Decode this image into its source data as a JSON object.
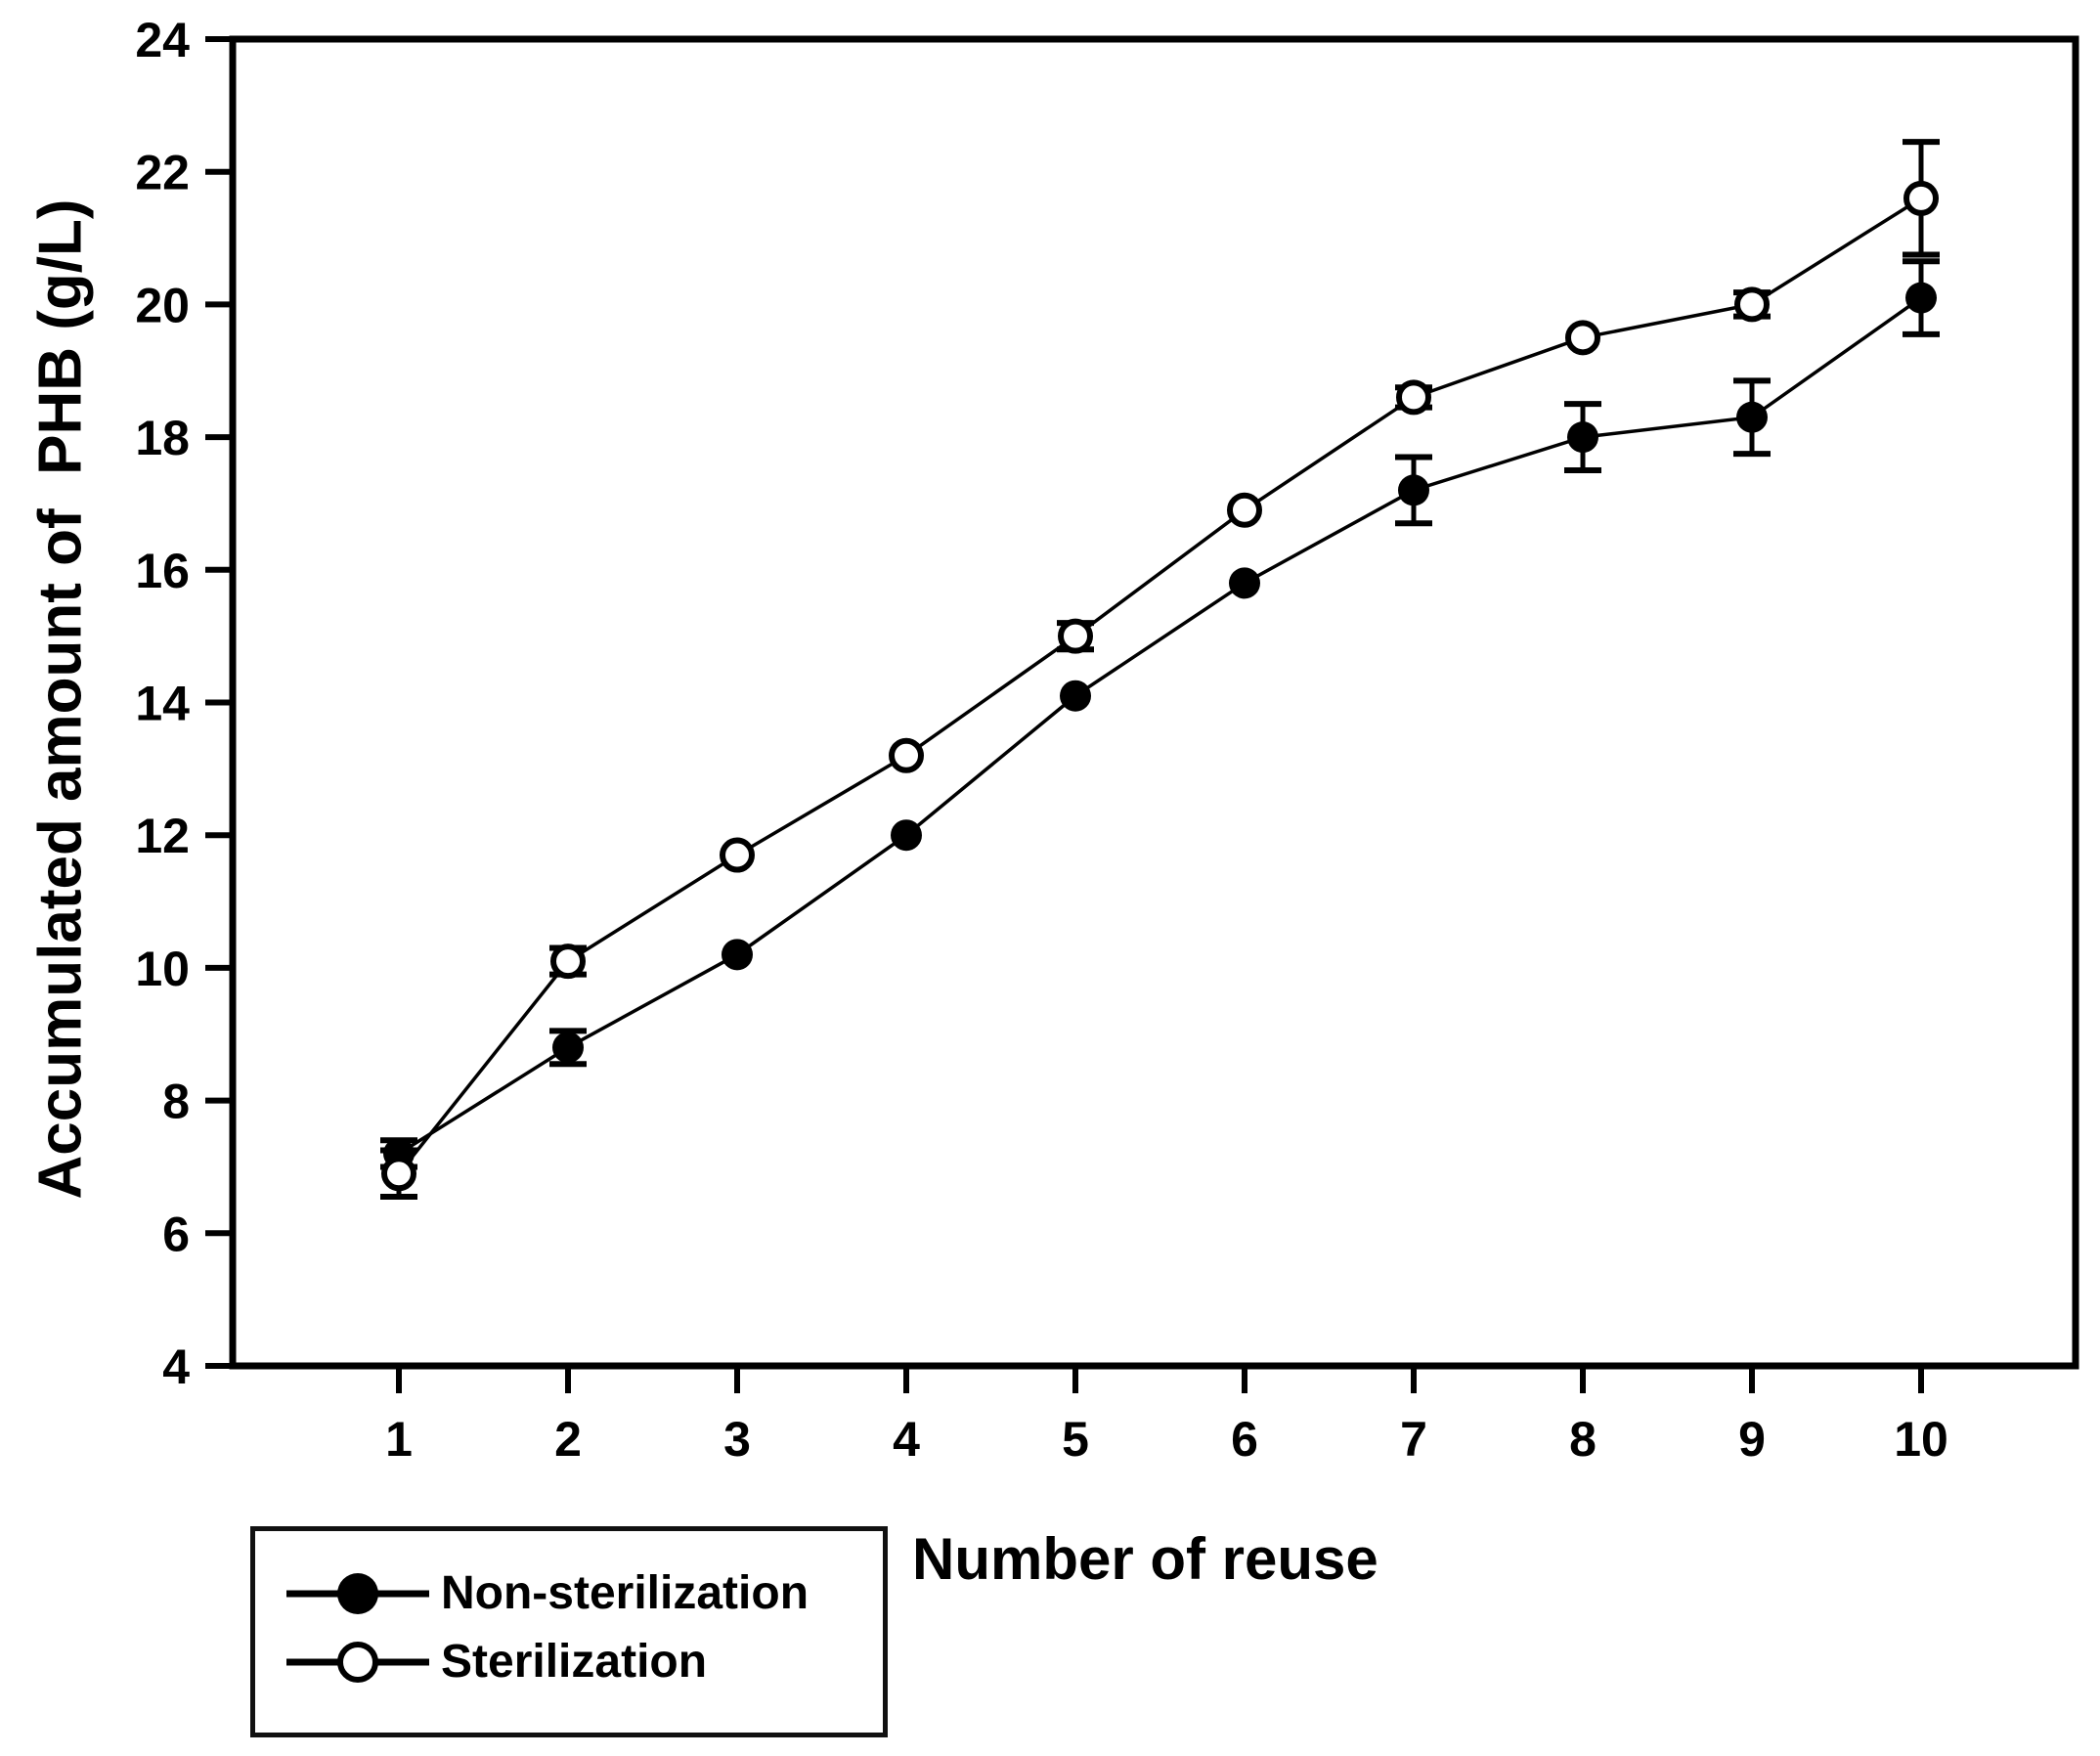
{
  "figure": {
    "background_color": "#ffffff",
    "foreground_color": "#000000"
  },
  "chart_data": {
    "type": "line",
    "title": "",
    "xlabel": "Number of reuse",
    "ylabel": "Accumulated amount of  PHB (g/L)",
    "x": [
      1,
      2,
      3,
      4,
      5,
      6,
      7,
      8,
      9,
      10
    ],
    "yticks": [
      4,
      6,
      8,
      10,
      12,
      14,
      16,
      18,
      20,
      22,
      24
    ],
    "ylim": [
      4,
      24
    ],
    "grid": false,
    "legend_position": "bottom-left-outside",
    "error_bars": true,
    "series": [
      {
        "name": "Non-sterilization",
        "marker": "filled-circle",
        "color": "#000000",
        "values": [
          7.2,
          8.8,
          10.2,
          12.0,
          14.1,
          15.8,
          17.2,
          18.0,
          18.3,
          20.1
        ],
        "errors": [
          0.2,
          0.25,
          0.1,
          0.1,
          0.1,
          0.1,
          0.5,
          0.5,
          0.55,
          0.55
        ]
      },
      {
        "name": "Sterilization",
        "marker": "open-circle",
        "color": "#000000",
        "values": [
          6.9,
          10.1,
          11.7,
          13.2,
          15.0,
          16.9,
          18.6,
          19.5,
          20.0,
          21.6
        ],
        "errors": [
          0.35,
          0.2,
          0.1,
          0.1,
          0.2,
          0.1,
          0.15,
          0.1,
          0.18,
          0.85
        ]
      }
    ]
  }
}
